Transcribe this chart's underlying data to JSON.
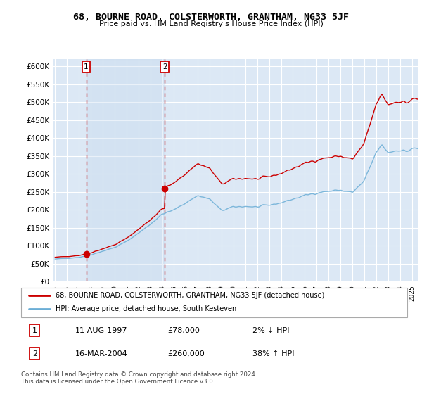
{
  "title": "68, BOURNE ROAD, COLSTERWORTH, GRANTHAM, NG33 5JF",
  "subtitle": "Price paid vs. HM Land Registry's House Price Index (HPI)",
  "background_color": "#ffffff",
  "plot_bg_color": "#dce8f5",
  "shaded_bg_color": "#dce8f5",
  "grid_color": "#ffffff",
  "sale1_date_num": 1997.614,
  "sale1_price": 78000,
  "sale2_date_num": 2004.21,
  "sale2_price": 260000,
  "hpi_color": "#6baed6",
  "price_color": "#cc0000",
  "marker_color": "#cc0000",
  "ylim": [
    0,
    620000
  ],
  "xlim_start": 1994.8,
  "xlim_end": 2025.5,
  "yticks": [
    0,
    50000,
    100000,
    150000,
    200000,
    250000,
    300000,
    350000,
    400000,
    450000,
    500000,
    550000,
    600000
  ],
  "ytick_labels": [
    "£0",
    "£50K",
    "£100K",
    "£150K",
    "£200K",
    "£250K",
    "£300K",
    "£350K",
    "£400K",
    "£450K",
    "£500K",
    "£550K",
    "£600K"
  ],
  "legend_line1": "68, BOURNE ROAD, COLSTERWORTH, GRANTHAM, NG33 5JF (detached house)",
  "legend_line2": "HPI: Average price, detached house, South Kesteven",
  "annotation1_box": "1",
  "annotation1_date": "11-AUG-1997",
  "annotation1_price": "£78,000",
  "annotation1_hpi": "2% ↓ HPI",
  "annotation2_box": "2",
  "annotation2_date": "16-MAR-2004",
  "annotation2_price": "£260,000",
  "annotation2_hpi": "38% ↑ HPI",
  "footer": "Contains HM Land Registry data © Crown copyright and database right 2024.\nThis data is licensed under the Open Government Licence v3.0."
}
